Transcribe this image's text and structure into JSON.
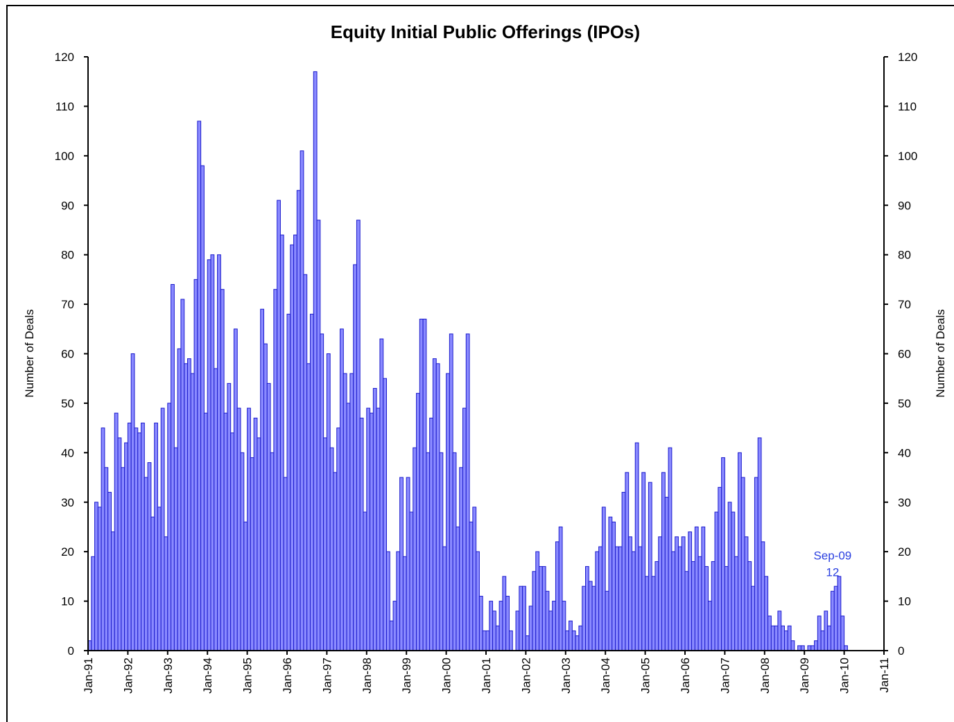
{
  "chart_data": {
    "type": "bar",
    "title": "Equity Initial Public Offerings (IPOs)",
    "ylabel": "Number of Deals",
    "y2label": "Number of Deals",
    "categories": [
      "Jan-91",
      null,
      null,
      null,
      null,
      null,
      null,
      null,
      null,
      null,
      null,
      null,
      "Jan-92",
      null,
      null,
      null,
      null,
      null,
      null,
      null,
      null,
      null,
      null,
      null,
      "Jan-93",
      null,
      null,
      null,
      null,
      null,
      null,
      null,
      null,
      null,
      null,
      null,
      "Jan-94",
      null,
      null,
      null,
      null,
      null,
      null,
      null,
      null,
      null,
      null,
      null,
      "Jan-95",
      null,
      null,
      null,
      null,
      null,
      null,
      null,
      null,
      null,
      null,
      null,
      "Jan-96",
      null,
      null,
      null,
      null,
      null,
      null,
      null,
      null,
      null,
      null,
      null,
      "Jan-97",
      null,
      null,
      null,
      null,
      null,
      null,
      null,
      null,
      null,
      null,
      null,
      "Jan-98",
      null,
      null,
      null,
      null,
      null,
      null,
      null,
      null,
      null,
      null,
      null,
      "Jan-99",
      null,
      null,
      null,
      null,
      null,
      null,
      null,
      null,
      null,
      null,
      null,
      "Jan-00",
      null,
      null,
      null,
      null,
      null,
      null,
      null,
      null,
      null,
      null,
      null,
      "Jan-01",
      null,
      null,
      null,
      null,
      null,
      null,
      null,
      null,
      null,
      null,
      null,
      "Jan-02",
      null,
      null,
      null,
      null,
      null,
      null,
      null,
      null,
      null,
      null,
      null,
      "Jan-03",
      null,
      null,
      null,
      null,
      null,
      null,
      null,
      null,
      null,
      null,
      null,
      "Jan-04",
      null,
      null,
      null,
      null,
      null,
      null,
      null,
      null,
      null,
      null,
      null,
      "Jan-05",
      null,
      null,
      null,
      null,
      null,
      null,
      null,
      null,
      null,
      null,
      null,
      "Jan-06",
      null,
      null,
      null,
      null,
      null,
      null,
      null,
      null,
      null,
      null,
      null,
      "Jan-07",
      null,
      null,
      null,
      null,
      null,
      null,
      null,
      null,
      null,
      null,
      null,
      "Jan-08",
      null,
      null,
      null,
      null,
      null,
      null,
      null,
      null,
      null,
      null,
      null,
      "Jan-09",
      null,
      null,
      null,
      null,
      null,
      null,
      null,
      null,
      null,
      null,
      null,
      "Jan-10",
      null,
      null,
      null,
      null,
      null,
      null,
      null,
      null,
      null,
      null,
      null,
      "Jan-11"
    ],
    "values": [
      2,
      19,
      30,
      29,
      45,
      37,
      32,
      24,
      48,
      43,
      37,
      42,
      46,
      60,
      45,
      44,
      46,
      35,
      38,
      27,
      46,
      29,
      49,
      23,
      50,
      74,
      41,
      61,
      71,
      58,
      59,
      56,
      75,
      107,
      98,
      48,
      79,
      80,
      57,
      80,
      73,
      48,
      54,
      44,
      65,
      49,
      40,
      26,
      49,
      39,
      47,
      43,
      69,
      62,
      54,
      40,
      73,
      91,
      84,
      35,
      68,
      82,
      84,
      93,
      101,
      76,
      58,
      68,
      117,
      87,
      64,
      43,
      60,
      41,
      36,
      45,
      65,
      56,
      50,
      56,
      78,
      87,
      47,
      28,
      49,
      48,
      53,
      49,
      63,
      55,
      20,
      6,
      10,
      20,
      35,
      19,
      35,
      28,
      41,
      52,
      67,
      67,
      40,
      47,
      59,
      58,
      40,
      21,
      56,
      64,
      40,
      25,
      37,
      49,
      64,
      26,
      29,
      20,
      11,
      4,
      4,
      10,
      8,
      5,
      10,
      15,
      11,
      4,
      0,
      8,
      13,
      13,
      3,
      9,
      16,
      20,
      17,
      17,
      12,
      8,
      10,
      22,
      25,
      10,
      4,
      6,
      4,
      3,
      5,
      13,
      17,
      14,
      13,
      20,
      21,
      29,
      12,
      27,
      26,
      21,
      21,
      32,
      36,
      23,
      20,
      42,
      21,
      36,
      15,
      34,
      15,
      18,
      23,
      36,
      31,
      41,
      20,
      23,
      21,
      23,
      16,
      24,
      18,
      25,
      19,
      25,
      17,
      10,
      18,
      28,
      33,
      39,
      17,
      30,
      28,
      19,
      40,
      35,
      23,
      18,
      13,
      35,
      43,
      22,
      15,
      7,
      5,
      5,
      8,
      5,
      4,
      5,
      2,
      0,
      1,
      1,
      0,
      1,
      1,
      2,
      7,
      4,
      8,
      5,
      12,
      13,
      15,
      7,
      1,
      null,
      null,
      null,
      null,
      null,
      null,
      null,
      null,
      null,
      null,
      null,
      null
    ],
    "color": "#8a8aff",
    "edge_color": "#1a1acc",
    "ylim": [
      0,
      120
    ],
    "yticks": [
      0,
      10,
      20,
      30,
      40,
      50,
      60,
      70,
      80,
      90,
      100,
      110,
      120
    ],
    "y2lim": [
      0,
      120
    ],
    "y2ticks": [
      0,
      10,
      20,
      30,
      40,
      50,
      60,
      70,
      80,
      90,
      100,
      110,
      120
    ],
    "annotation": {
      "category": "Sep-09",
      "value": 12,
      "index": 224,
      "color": "#2a3fe0"
    }
  }
}
